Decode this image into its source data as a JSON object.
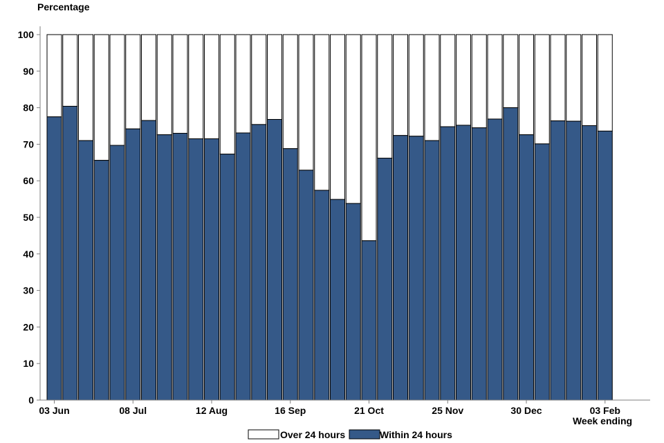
{
  "chart_data": {
    "type": "bar",
    "stacked": true,
    "ylabel": "Percentage",
    "xlabel": "Week ending",
    "ylim": [
      0,
      100
    ],
    "yticks": [
      0,
      10,
      20,
      30,
      40,
      50,
      60,
      70,
      80,
      90,
      100
    ],
    "xtick_labels": [
      {
        "index": 0,
        "label": "03 Jun"
      },
      {
        "index": 5,
        "label": "08 Jul"
      },
      {
        "index": 10,
        "label": "12 Aug"
      },
      {
        "index": 15,
        "label": "16 Sep"
      },
      {
        "index": 20,
        "label": "21 Oct"
      },
      {
        "index": 25,
        "label": "25 Nov"
      },
      {
        "index": 30,
        "label": "30 Dec"
      },
      {
        "index": 35,
        "label": "03 Feb"
      }
    ],
    "grid": false,
    "legend_position": "bottom",
    "series": [
      {
        "name": "Within 24 hours",
        "color": "#355988",
        "values": [
          77.5,
          80.4,
          71.0,
          65.6,
          69.7,
          74.2,
          76.5,
          72.6,
          73.0,
          71.5,
          71.5,
          67.3,
          73.1,
          75.4,
          76.8,
          68.8,
          62.9,
          57.4,
          54.9,
          53.8,
          43.6,
          66.2,
          72.4,
          72.2,
          71.0,
          74.8,
          75.2,
          74.5,
          76.9,
          80.0,
          72.6,
          70.1,
          76.4,
          76.3,
          75.1,
          73.6
        ]
      },
      {
        "name": "Over 24 hours",
        "color": "#ffffff",
        "values": [
          22.5,
          19.6,
          29.0,
          34.4,
          30.3,
          25.8,
          23.5,
          27.4,
          27.0,
          28.5,
          28.5,
          32.7,
          26.9,
          24.6,
          23.2,
          31.2,
          37.1,
          42.6,
          45.1,
          46.2,
          56.4,
          33.8,
          27.6,
          27.8,
          29.0,
          25.2,
          24.8,
          25.5,
          23.1,
          20.0,
          27.4,
          29.9,
          23.6,
          23.7,
          24.9,
          26.4
        ]
      }
    ],
    "legend": [
      {
        "label": "Over 24 hours",
        "color": "#ffffff"
      },
      {
        "label": "Within 24 hours",
        "color": "#355988"
      }
    ]
  }
}
